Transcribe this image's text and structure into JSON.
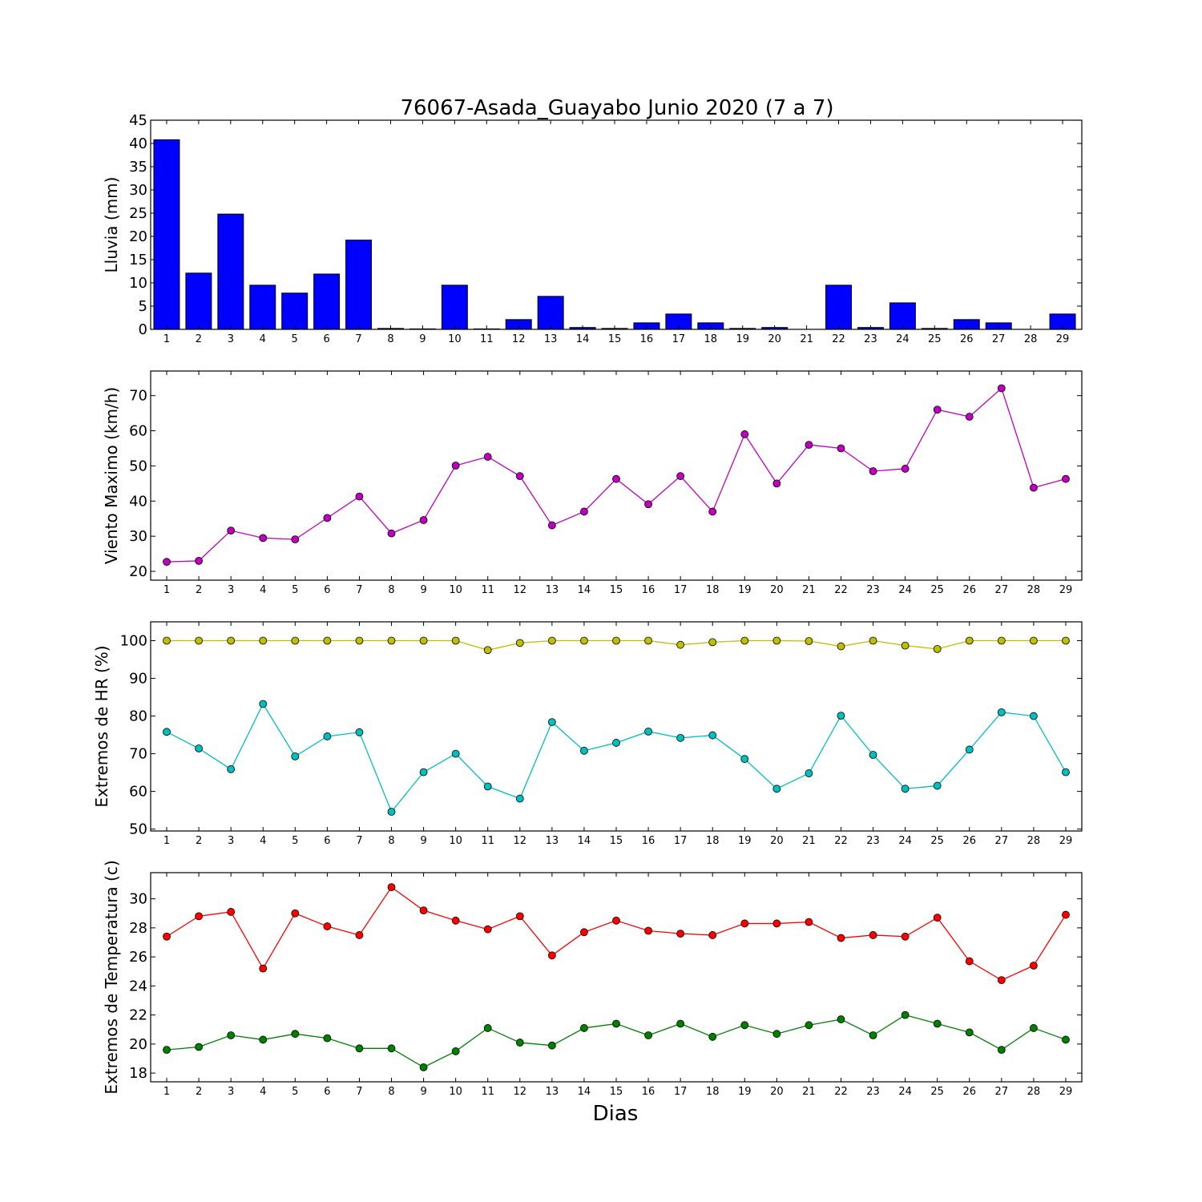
{
  "title": "76067-Asada_Guayabo Junio 2020  (7 a 7)",
  "xlabel": "Dias",
  "chart_data": [
    {
      "type": "bar",
      "ylabel": "Lluvia (mm)",
      "ylim": [
        0,
        45
      ],
      "yticks": [
        0,
        5,
        10,
        15,
        20,
        25,
        30,
        35,
        40,
        45
      ],
      "categories": [
        "1",
        "2",
        "3",
        "4",
        "5",
        "6",
        "7",
        "8",
        "9",
        "10",
        "11",
        "12",
        "13",
        "14",
        "15",
        "16",
        "17",
        "18",
        "19",
        "20",
        "21",
        "22",
        "23",
        "24",
        "25",
        "26",
        "27",
        "28",
        "29"
      ],
      "series": [
        {
          "color": "#0000ff",
          "values": [
            40.8,
            12.1,
            24.8,
            9.5,
            7.8,
            11.9,
            19.2,
            0.2,
            0.1,
            9.5,
            0.1,
            2.1,
            7.1,
            0.4,
            0.2,
            1.4,
            3.3,
            1.4,
            0.2,
            0.4,
            0.0,
            9.5,
            0.4,
            5.7,
            0.2,
            2.1,
            1.4,
            0.0,
            3.3
          ]
        }
      ]
    },
    {
      "type": "line",
      "ylabel": "Viento Maximo (km/h)",
      "ylim": [
        17.5,
        77
      ],
      "yticks": [
        20,
        30,
        40,
        50,
        60,
        70
      ],
      "categories": [
        "1",
        "2",
        "3",
        "4",
        "5",
        "6",
        "7",
        "8",
        "9",
        "10",
        "11",
        "12",
        "13",
        "14",
        "15",
        "16",
        "17",
        "18",
        "19",
        "20",
        "21",
        "22",
        "23",
        "24",
        "25",
        "26",
        "27",
        "28",
        "29"
      ],
      "series": [
        {
          "color": "#bf00bf",
          "values": [
            22.7,
            23.0,
            31.6,
            29.5,
            29.1,
            35.2,
            41.3,
            30.8,
            34.6,
            50.1,
            52.6,
            47.1,
            33.1,
            37.0,
            46.3,
            39.1,
            47.1,
            37.0,
            59.0,
            45.0,
            56.0,
            55.0,
            48.5,
            49.2,
            66.0,
            64.0,
            72.1,
            43.8,
            46.3
          ]
        }
      ]
    },
    {
      "type": "line",
      "ylabel": "Extremos de HR (%)",
      "ylim": [
        49.5,
        105
      ],
      "yticks": [
        50,
        60,
        70,
        80,
        90,
        100
      ],
      "categories": [
        "1",
        "2",
        "3",
        "4",
        "5",
        "6",
        "7",
        "8",
        "9",
        "10",
        "11",
        "12",
        "13",
        "14",
        "15",
        "16",
        "17",
        "18",
        "19",
        "20",
        "21",
        "22",
        "23",
        "24",
        "25",
        "26",
        "27",
        "28",
        "29"
      ],
      "series": [
        {
          "color": "#bfbf00",
          "values": [
            100,
            100,
            100,
            100,
            100,
            100,
            100,
            100,
            100,
            100,
            97.5,
            99.4,
            100,
            100,
            100,
            100,
            98.9,
            99.6,
            100,
            100,
            99.9,
            98.5,
            100,
            98.7,
            97.8,
            100,
            100,
            100,
            100
          ]
        },
        {
          "color": "#00bfbf",
          "values": [
            75.8,
            71.4,
            65.9,
            83.2,
            69.3,
            74.6,
            75.7,
            54.6,
            65.1,
            70.0,
            61.3,
            58.1,
            78.4,
            70.8,
            72.9,
            75.9,
            74.2,
            74.9,
            68.6,
            60.7,
            64.8,
            80.1,
            69.7,
            60.7,
            61.5,
            71.1,
            81.0,
            80.0,
            65.1
          ]
        }
      ]
    },
    {
      "type": "line",
      "ylabel": "Extremos de Temperatura (c)",
      "ylim": [
        17.4,
        31.8
      ],
      "yticks": [
        18,
        20,
        22,
        24,
        26,
        28,
        30
      ],
      "categories": [
        "1",
        "2",
        "3",
        "4",
        "5",
        "6",
        "7",
        "8",
        "9",
        "10",
        "11",
        "12",
        "13",
        "14",
        "15",
        "16",
        "17",
        "18",
        "19",
        "20",
        "21",
        "22",
        "23",
        "24",
        "25",
        "26",
        "27",
        "28",
        "29"
      ],
      "series": [
        {
          "color": "#ff0000",
          "values": [
            27.4,
            28.8,
            29.1,
            25.2,
            29.0,
            28.1,
            27.5,
            30.8,
            29.2,
            28.5,
            27.9,
            28.8,
            26.1,
            27.7,
            28.5,
            27.8,
            27.6,
            27.5,
            28.3,
            28.3,
            28.4,
            27.3,
            27.5,
            27.4,
            28.7,
            25.7,
            24.4,
            25.4,
            28.9
          ]
        },
        {
          "color": "#008000",
          "values": [
            19.6,
            19.8,
            20.6,
            20.3,
            20.7,
            20.4,
            19.7,
            19.7,
            18.4,
            19.5,
            21.1,
            20.1,
            19.9,
            21.1,
            21.4,
            20.6,
            21.4,
            20.5,
            21.3,
            20.7,
            21.3,
            21.7,
            20.6,
            22.0,
            21.4,
            20.8,
            19.6,
            21.1,
            20.3
          ]
        }
      ]
    }
  ]
}
